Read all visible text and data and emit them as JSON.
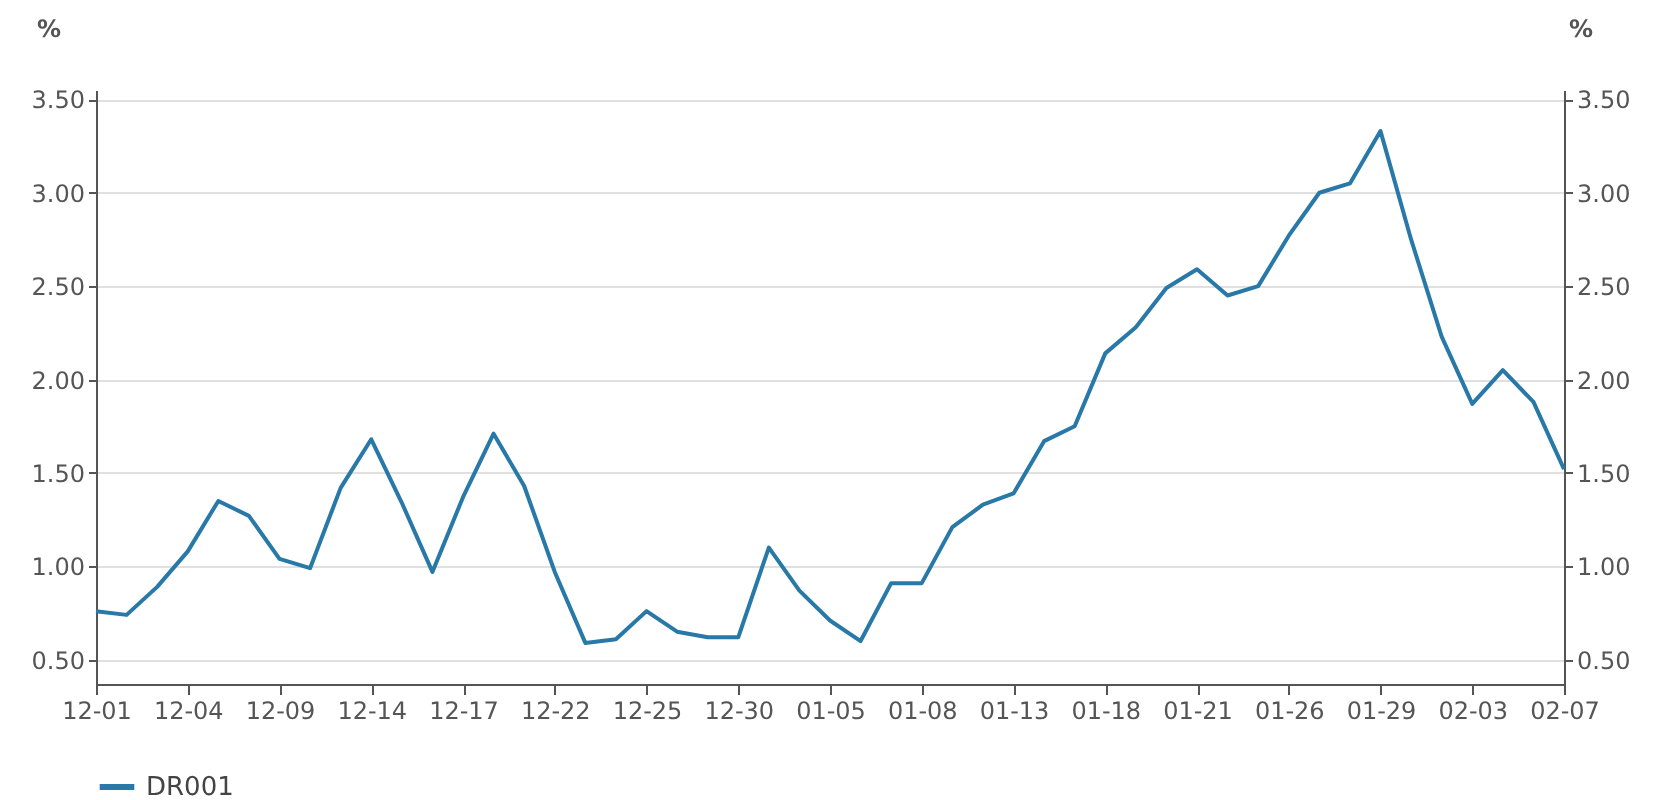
{
  "chart_data": {
    "type": "line",
    "ylabel": "%",
    "y2label": "%",
    "categories": [
      "12-01",
      null,
      null,
      "12-04",
      null,
      null,
      "12-09",
      null,
      null,
      "12-14",
      null,
      null,
      "12-17",
      null,
      null,
      "12-22",
      null,
      null,
      "12-25",
      null,
      null,
      "12-30",
      null,
      null,
      "01-05",
      null,
      null,
      "01-08",
      null,
      null,
      "01-13",
      null,
      null,
      "01-18",
      null,
      null,
      "01-21",
      null,
      null,
      "01-26",
      null,
      null,
      "01-29",
      null,
      null,
      "02-03",
      null,
      null,
      "02-07"
    ],
    "series": [
      {
        "name": "DR001",
        "color": "#2878a8",
        "values": [
          0.76,
          0.74,
          0.89,
          1.08,
          1.35,
          1.27,
          1.04,
          0.99,
          1.42,
          1.68,
          1.34,
          0.97,
          1.37,
          1.71,
          1.43,
          0.97,
          0.59,
          0.61,
          0.76,
          0.65,
          0.62,
          0.62,
          1.1,
          0.87,
          0.71,
          0.6,
          0.91,
          0.91,
          1.21,
          1.33,
          1.39,
          1.67,
          1.75,
          2.14,
          2.28,
          2.49,
          2.59,
          2.45,
          2.5,
          2.77,
          3.0,
          3.05,
          3.33,
          2.75,
          2.23,
          1.87,
          2.05,
          1.88,
          1.52
        ]
      }
    ],
    "ylim": [
      0.37,
      3.55
    ],
    "yticks": [
      {
        "value": 0.5,
        "label": "0.50"
      },
      {
        "value": 1,
        "label": "1.00"
      },
      {
        "value": 1.5,
        "label": "1.50"
      },
      {
        "value": 2,
        "label": "2.00"
      },
      {
        "value": 2.5,
        "label": "2.50"
      },
      {
        "value": 3,
        "label": "3.00"
      },
      {
        "value": 3.5,
        "label": "3.50"
      }
    ],
    "y2lim": [
      0.37,
      3.55
    ],
    "y2ticks": [
      {
        "value": 0.5,
        "label": "0.50"
      },
      {
        "value": 1,
        "label": "1.00"
      },
      {
        "value": 1.5,
        "label": "1.50"
      },
      {
        "value": 2,
        "label": "2.00"
      },
      {
        "value": 2.5,
        "label": "2.50"
      },
      {
        "value": 3,
        "label": "3.00"
      },
      {
        "value": 3.5,
        "label": "3.50"
      }
    ],
    "grid": "y",
    "legend": "bottom",
    "marker": "none",
    "line_style": "solid"
  }
}
